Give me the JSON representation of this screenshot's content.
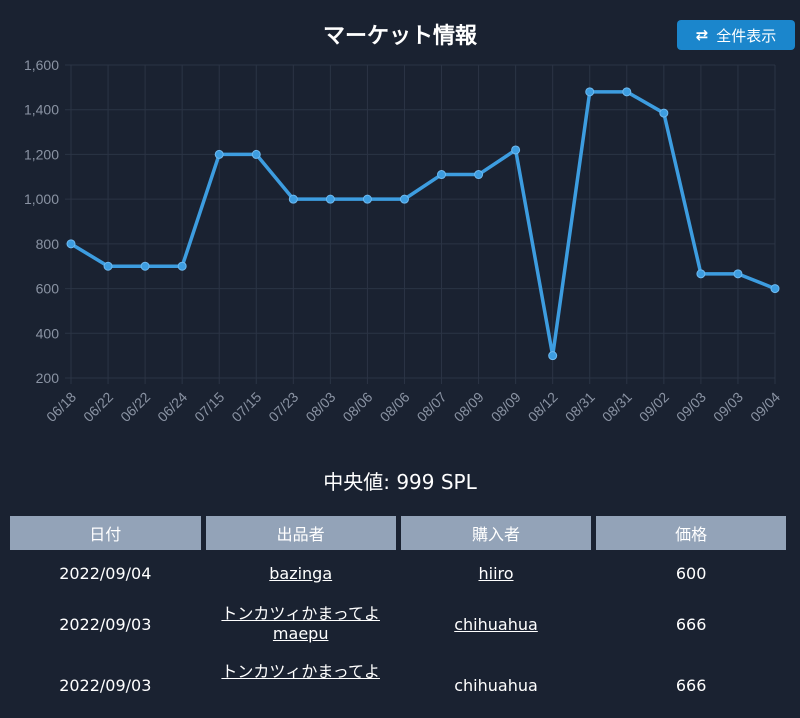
{
  "header": {
    "title": "マーケット情報",
    "show_all_label": "全件表示",
    "show_all_icon": "swap-arrows-icon"
  },
  "median_text": "中央値: 999 SPL",
  "table": {
    "headers": [
      "日付",
      "出品者",
      "購入者",
      "価格"
    ],
    "rows": [
      {
        "date": "2022/09/04",
        "sellers": [
          "bazinga"
        ],
        "buyer": "hiiro",
        "price": "600"
      },
      {
        "date": "2022/09/03",
        "sellers": [
          "トンカツィかまってよ",
          "maepu"
        ],
        "buyer": "chihuahua",
        "price": "666"
      },
      {
        "date": "2022/09/03",
        "sellers": [
          "トンカツィかまってよ"
        ],
        "buyer": "chihuahua",
        "price": "666"
      }
    ]
  },
  "chart_data": {
    "type": "line",
    "categories": [
      "06/18",
      "06/22",
      "06/22",
      "06/24",
      "07/15",
      "07/15",
      "07/23",
      "08/03",
      "08/06",
      "08/06",
      "08/07",
      "08/09",
      "08/09",
      "08/12",
      "08/31",
      "08/31",
      "09/02",
      "09/03",
      "09/03",
      "09/04"
    ],
    "values": [
      800,
      700,
      700,
      700,
      1200,
      1200,
      1000,
      1000,
      1000,
      1000,
      1110,
      1110,
      1220,
      300,
      1480,
      1480,
      1385,
      666,
      666,
      600
    ],
    "yticks": [
      "200",
      "400",
      "600",
      "800",
      "1,000",
      "1,200",
      "1,400",
      "1,600"
    ],
    "ylim": [
      200,
      1600
    ],
    "grid": true,
    "colors": {
      "line": "#3d9de0",
      "grid": "#2b3445",
      "tick": "#8a93a3"
    }
  }
}
